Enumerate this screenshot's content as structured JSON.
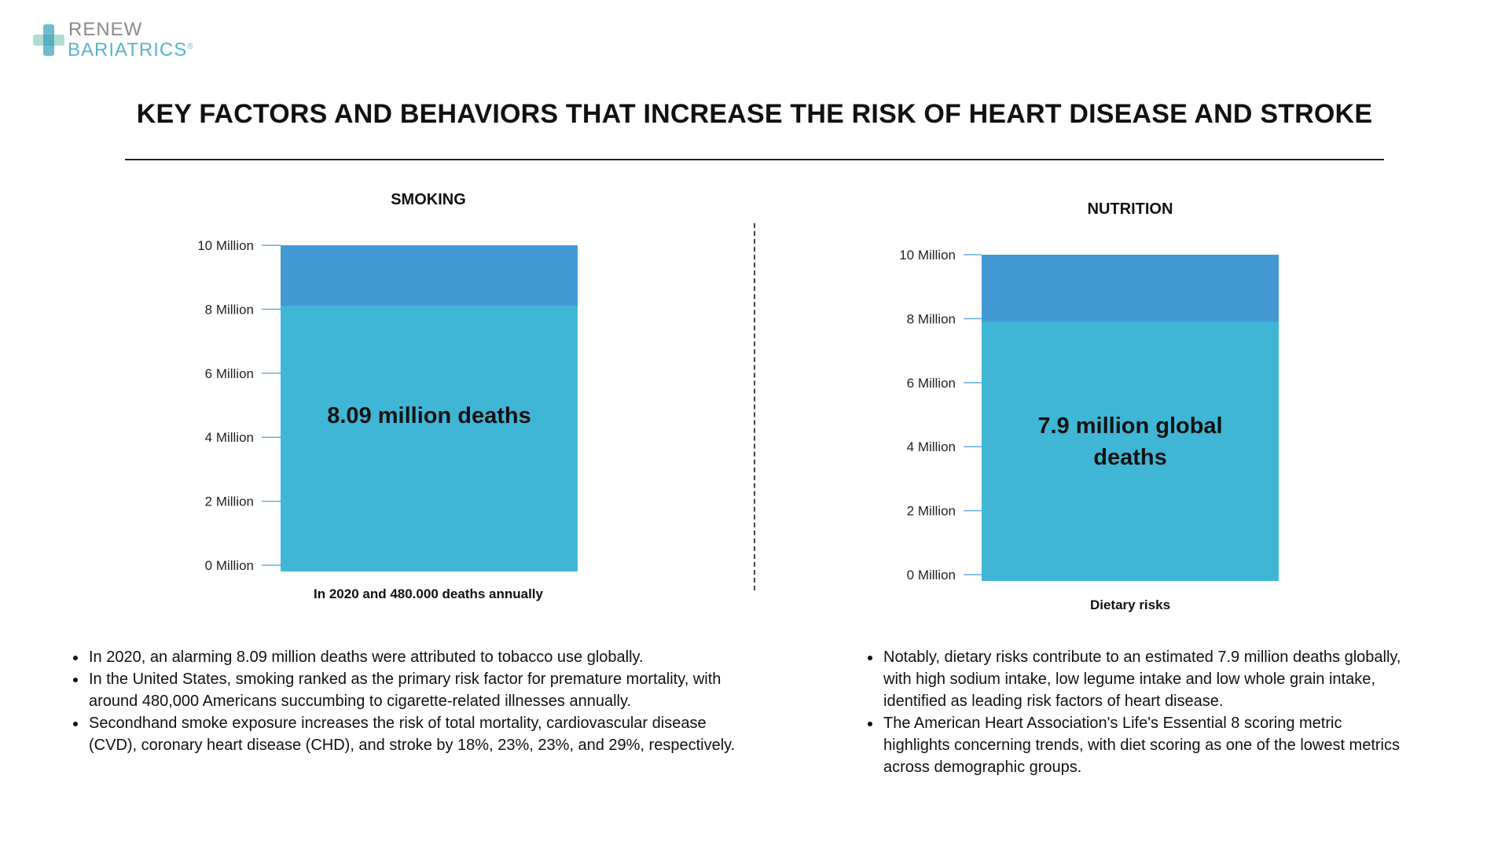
{
  "logo": {
    "line1": "RENEW",
    "line2": "BARIATRICS",
    "mark": "®"
  },
  "title": "KEY FACTORS AND BEHAVIORS THAT INCREASE THE RISK OF HEART DISEASE AND STROKE",
  "colors": {
    "primary_bar": "#40B6D6",
    "remainder_bar": "#4399D4",
    "tick": "#6aaed6",
    "text": "#111111"
  },
  "chart_data": [
    {
      "type": "bar",
      "title": "SMOKING",
      "categories": [
        "In 2020 and 480.000 deaths annually"
      ],
      "xlabel": "In 2020 and 480.000 deaths annually",
      "series": [
        {
          "values": [
            8.09
          ]
        }
      ],
      "stack_total": 10,
      "data_label": "8.09 million deaths",
      "ylim": [
        0,
        10
      ],
      "yticks": [
        0,
        2,
        4,
        6,
        8,
        10
      ],
      "ytick_labels": [
        "0 Million",
        "2 Million",
        "4 Million",
        "6 Million",
        "8 Million",
        "10 Million"
      ],
      "grid": false
    },
    {
      "type": "bar",
      "title": "NUTRITION",
      "categories": [
        "Dietary risks"
      ],
      "xlabel": "Dietary risks",
      "series": [
        {
          "values": [
            7.9
          ]
        }
      ],
      "stack_total": 10,
      "data_label": "7.9 million global deaths",
      "ylim": [
        0,
        10
      ],
      "yticks": [
        0,
        2,
        4,
        6,
        8,
        10
      ],
      "ytick_labels": [
        "0 Million",
        "2 Million",
        "4 Million",
        "6 Million",
        "8 Million",
        "10 Million"
      ],
      "grid": false
    }
  ],
  "smoking_bullets": [
    "In 2020, an alarming 8.09 million deaths were attributed to tobacco use globally.",
    "In the United States, smoking ranked as the primary risk factor for premature mortality, with around 480,000 Americans succumbing to cigarette-related illnesses annually.",
    "Secondhand smoke exposure increases the risk of total mortality, cardiovascular disease (CVD), coronary heart disease (CHD), and stroke by 18%, 23%, 23%, and 29%, respectively."
  ],
  "nutrition_bullets": [
    "Notably, dietary risks contribute to an estimated 7.9 million deaths globally, with high sodium intake, low legume intake and low whole grain intake, identified as leading risk factors of heart disease.",
    "The American Heart Association's Life's Essential 8 scoring metric highlights concerning trends, with diet scoring as one of the lowest metrics across demographic groups."
  ]
}
